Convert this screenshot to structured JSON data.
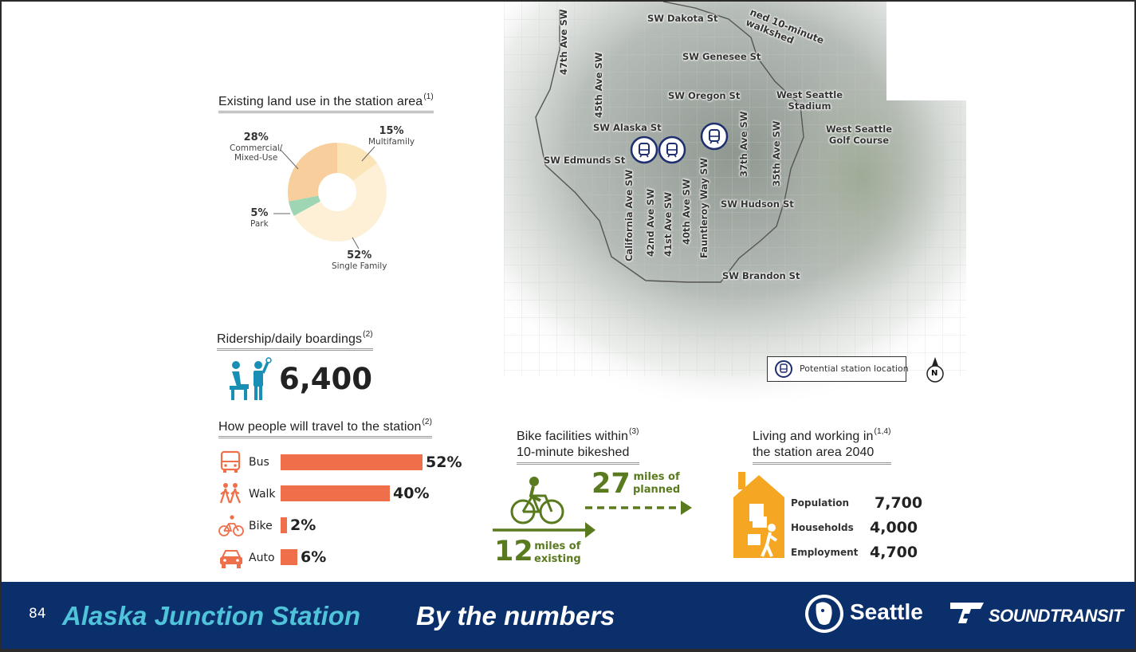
{
  "land_use": {
    "title": "Existing land use in the station area",
    "ref": "(1)",
    "chart_data": {
      "type": "pie",
      "categories": [
        "Multifamily",
        "Single Family",
        "Park",
        "Commercial/ Mixed-Use"
      ],
      "values": [
        15,
        52,
        5,
        28
      ],
      "colors": [
        "#fbe4b8",
        "#fdf0d6",
        "#9ed6b4",
        "#f7ce9c"
      ],
      "title": "Existing land use in the station area"
    },
    "labels": [
      {
        "pct": "15%",
        "name": "Multifamily"
      },
      {
        "pct": "52%",
        "name": "Single Family"
      },
      {
        "pct": "5%",
        "name": "Park"
      },
      {
        "pct": "28%",
        "name_line1": "Commercial/",
        "name_line2": "Mixed-Use"
      }
    ]
  },
  "ridership": {
    "title": "Ridership/daily boardings",
    "ref": "(2)",
    "value": "6,400",
    "icon": "rider-icon"
  },
  "travel": {
    "title": "How people will travel to the station",
    "ref": "(2)",
    "chart_data": {
      "type": "bar",
      "categories": [
        "Bus",
        "Walk",
        "Bike",
        "Auto"
      ],
      "values": [
        52,
        40,
        2,
        6
      ],
      "xlim": [
        0,
        52
      ]
    },
    "value_labels": [
      "52%",
      "40%",
      "2%",
      "6%"
    ],
    "icons": [
      "bus-icon",
      "walk-icon",
      "bike-icon",
      "car-icon"
    ],
    "bar_color": "#ef6f4a"
  },
  "bike": {
    "title_line1": "Bike facilities within",
    "ref": "(3)",
    "title_line2": "10-minute bikeshed",
    "planned_value": "27",
    "planned_line1": "miles of",
    "planned_line2": "planned",
    "existing_value": "12",
    "existing_line1": "miles of",
    "existing_line2": "existing",
    "accent": "#5a7a1f"
  },
  "living": {
    "title_line1": "Living and working in",
    "ref": "(1,4)",
    "title_line2": "the station area 2040",
    "stats": [
      {
        "label": "Population",
        "value": "7,700"
      },
      {
        "label": "Households",
        "value": "4,000"
      },
      {
        "label": "Employment",
        "value": "4,700"
      }
    ],
    "accent": "#f5a623"
  },
  "map": {
    "walkshed_label_line1": "ned 10-minute",
    "walkshed_label_line2": "walkshed",
    "streets_h": [
      {
        "name": "SW Dakota St"
      },
      {
        "name": "SW Genesee St"
      },
      {
        "name": "SW Oregon St"
      },
      {
        "name": "SW Alaska St"
      },
      {
        "name": "SW Edmunds St"
      },
      {
        "name": "SW Hudson St"
      },
      {
        "name": "SW Brandon St"
      }
    ],
    "streets_v": [
      {
        "name": "47th Ave SW"
      },
      {
        "name": "45th Ave SW"
      },
      {
        "name": "California Ave SW"
      },
      {
        "name": "42nd Ave SW"
      },
      {
        "name": "41st Ave SW"
      },
      {
        "name": "40th Ave SW"
      },
      {
        "name": "Fauntleroy Way SW"
      },
      {
        "name": "37th Ave SW"
      },
      {
        "name": "35th Ave SW"
      }
    ],
    "places": [
      {
        "line1": "West Seattle",
        "line2": "Stadium"
      },
      {
        "line1": "West Seattle",
        "line2": "Golf Course"
      }
    ],
    "legend": "Potential station location",
    "north_label": "N",
    "station_color": "#1f2f6e"
  },
  "footer": {
    "page_number": "84",
    "title_accent": "Alaska Junction Station",
    "title_rest": "By the numbers",
    "seattle_logo": "Seattle",
    "soundtransit_logo": "SOUNDTRANSIT",
    "title_accent_color": "#4fc3d9"
  }
}
